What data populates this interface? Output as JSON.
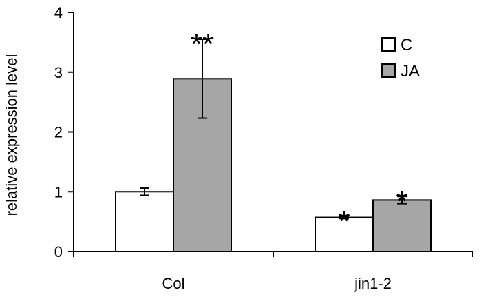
{
  "chart_data": {
    "type": "bar",
    "categories": [
      "Col",
      "jin1-2"
    ],
    "ylabel": "relative expression level",
    "ylim": [
      0,
      4
    ],
    "yticks": [
      "0",
      "1",
      "2",
      "3",
      "4"
    ],
    "grid": false,
    "legend_position": "top-right",
    "series": [
      {
        "name": "C",
        "color": "#ffffff",
        "values": [
          1.0,
          0.57
        ],
        "errors": [
          0.06,
          0.02
        ],
        "annotations": [
          "",
          "*"
        ]
      },
      {
        "name": "JA",
        "color": "#a6a6a6",
        "values": [
          2.89,
          0.86
        ],
        "errors": [
          0.66,
          0.06
        ],
        "annotations": [
          "**",
          "*"
        ]
      }
    ]
  }
}
